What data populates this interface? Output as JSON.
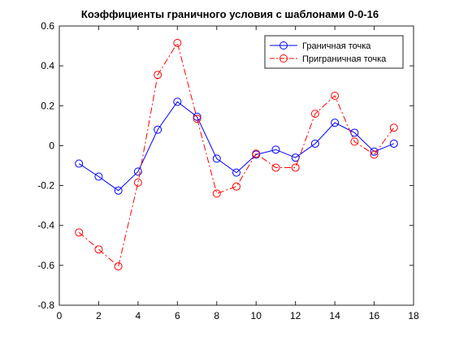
{
  "chart_data": {
    "type": "line",
    "title": "Коэффициенты граничного условия с шаблонами 0-0-16",
    "xlabel": "",
    "ylabel": "",
    "xlim": [
      0,
      18
    ],
    "ylim": [
      -0.8,
      0.6
    ],
    "xticks": [
      0,
      2,
      4,
      6,
      8,
      10,
      12,
      14,
      16,
      18
    ],
    "yticks": [
      -0.8,
      -0.6,
      -0.4,
      -0.2,
      0,
      0.2,
      0.4,
      0.6
    ],
    "ytick_labels": [
      "-0.8",
      "-0.6",
      "-0.4",
      "-0.2",
      "0",
      "0.2",
      "0.4",
      "0.6"
    ],
    "xtick_labels": [
      "0",
      "2",
      "4",
      "6",
      "8",
      "10",
      "12",
      "14",
      "16",
      "18"
    ],
    "grid": false,
    "legend_position": "top-right",
    "x": [
      1,
      2,
      3,
      4,
      5,
      6,
      7,
      8,
      9,
      10,
      11,
      12,
      13,
      14,
      15,
      16,
      17
    ],
    "series": [
      {
        "name": "Граничная точка",
        "color": "#0000ff",
        "line_style": "solid",
        "marker": "circle",
        "values": [
          -0.09,
          -0.155,
          -0.225,
          -0.13,
          0.08,
          0.22,
          0.145,
          -0.065,
          -0.135,
          -0.045,
          -0.02,
          -0.06,
          0.01,
          0.115,
          0.065,
          -0.03,
          0.01
        ]
      },
      {
        "name": "Приграничная точка",
        "color": "#ff0000",
        "line_style": "dash-dot",
        "marker": "circle",
        "values": [
          -0.435,
          -0.52,
          -0.605,
          -0.185,
          0.355,
          0.515,
          0.135,
          -0.24,
          -0.205,
          -0.04,
          -0.11,
          -0.11,
          0.16,
          0.25,
          0.02,
          -0.045,
          0.09
        ]
      }
    ]
  }
}
